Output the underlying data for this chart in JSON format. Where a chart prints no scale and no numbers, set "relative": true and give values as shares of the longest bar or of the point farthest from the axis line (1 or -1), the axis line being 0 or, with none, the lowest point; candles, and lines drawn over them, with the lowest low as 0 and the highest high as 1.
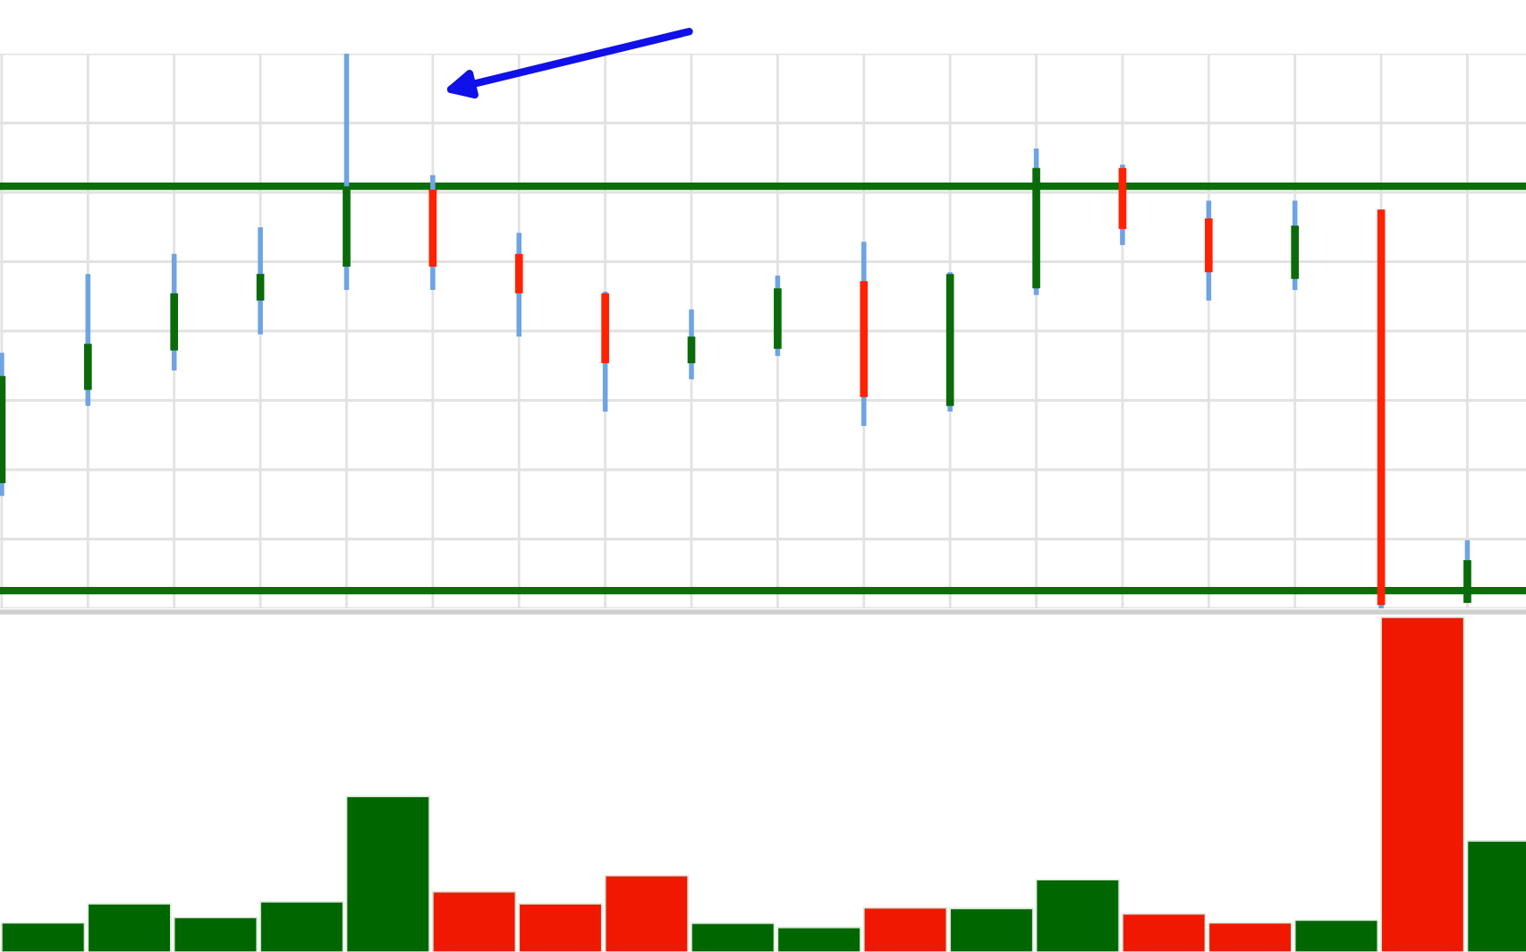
{
  "chart_data": [
    {
      "type": "candlestick",
      "relative": true,
      "categories": [
        null,
        null,
        null,
        null,
        null,
        null,
        null,
        null,
        null,
        null,
        null,
        null,
        null,
        null,
        null,
        null,
        null,
        null
      ],
      "ohlc": [
        [
          0.226,
          0.461,
          0.203,
          0.419
        ],
        [
          0.394,
          0.603,
          0.365,
          0.477
        ],
        [
          0.465,
          0.639,
          0.429,
          0.568
        ],
        [
          0.555,
          0.687,
          0.494,
          0.603
        ],
        [
          0.616,
          1.0,
          0.574,
          0.761
        ],
        [
          0.755,
          0.781,
          0.574,
          0.616
        ],
        [
          0.639,
          0.677,
          0.49,
          0.568
        ],
        [
          0.568,
          0.571,
          0.355,
          0.442
        ],
        [
          0.442,
          0.539,
          0.413,
          0.49
        ],
        [
          0.468,
          0.6,
          0.455,
          0.577
        ],
        [
          0.59,
          0.661,
          0.329,
          0.381
        ],
        [
          0.365,
          0.606,
          0.355,
          0.603
        ],
        [
          0.577,
          0.829,
          0.565,
          0.794
        ],
        [
          0.794,
          0.8,
          0.655,
          0.684
        ],
        [
          0.703,
          0.735,
          0.555,
          0.606
        ],
        [
          0.594,
          0.735,
          0.574,
          0.69
        ],
        [
          0.719,
          0.719,
          0.0,
          0.006
        ],
        [
          0.01,
          0.123,
          0.01,
          0.087
        ]
      ],
      "colors": [
        "#0b6b0b",
        "#0b6b0b",
        "#0b6b0b",
        "#0b6b0b",
        "#0b6b0b",
        "#ff2200",
        "#ff2200",
        "#ff2200",
        "#0b6b0b",
        "#0b6b0b",
        "#ff2200",
        "#0b6b0b",
        "#0b6b0b",
        "#ff2200",
        "#ff2200",
        "#0b6b0b",
        "#ff2200",
        "#0b6b0b"
      ],
      "grid": true,
      "ref_lines": [
        {
          "axis": "y",
          "value": 0.761,
          "color": "#0a6e0a"
        },
        {
          "axis": "y",
          "value": 0.032,
          "color": "#0a6e0a"
        }
      ]
    },
    {
      "type": "bar",
      "relative": true,
      "categories": [
        null,
        null,
        null,
        null,
        null,
        null,
        null,
        null,
        null,
        null,
        null,
        null,
        null,
        null,
        null,
        null,
        null,
        null
      ],
      "values": [
        0.087,
        0.144,
        0.103,
        0.15,
        0.465,
        0.18,
        0.144,
        0.228,
        0.086,
        0.073,
        0.132,
        0.13,
        0.216,
        0.114,
        0.087,
        0.095,
        1.0,
        0.332
      ],
      "colors": [
        "#006600",
        "#006600",
        "#006600",
        "#006600",
        "#006600",
        "#f01800",
        "#f01800",
        "#f01800",
        "#006600",
        "#006600",
        "#f01800",
        "#006600",
        "#006600",
        "#f01800",
        "#f01800",
        "#006600",
        "#f01800",
        "#006600"
      ]
    }
  ]
}
